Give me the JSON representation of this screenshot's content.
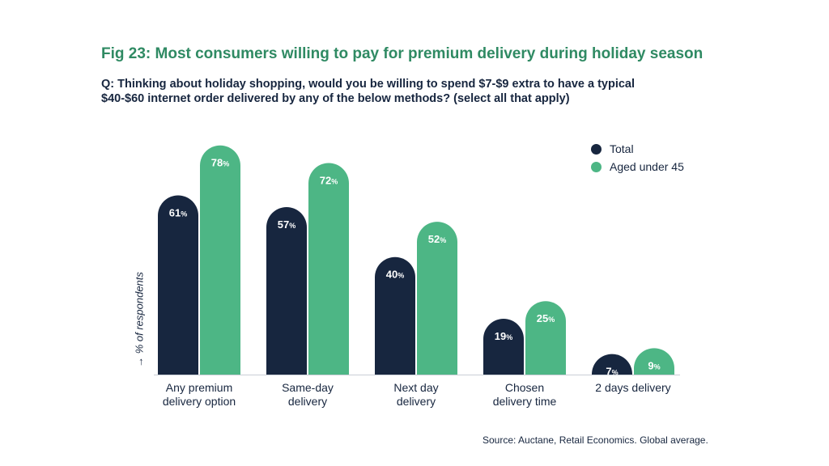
{
  "chart_data": {
    "type": "bar",
    "title": "Fig 23: Most consumers willing to pay for premium delivery during holiday season",
    "subtitle": "Q: Thinking about holiday shopping, would you be willing to spend $7-$9 extra to have a typical $40-$60 internet order delivered by any of the below methods? (select all that apply)",
    "ylabel": "→ % of respondents",
    "categories": [
      [
        "Any premium",
        "delivery option"
      ],
      [
        "Same-day",
        "delivery"
      ],
      [
        "Next day",
        "delivery"
      ],
      [
        "Chosen",
        "delivery time"
      ],
      [
        "2 days delivery"
      ]
    ],
    "series": [
      {
        "name": "Total",
        "color": "#17263f",
        "values": [
          61,
          57,
          40,
          19,
          7
        ]
      },
      {
        "name": "Aged under 45",
        "color": "#4db685",
        "values": [
          78,
          72,
          52,
          25,
          9
        ]
      }
    ],
    "value_suffix": "%",
    "ylim": [
      0,
      80
    ],
    "grid": false,
    "legend_position": "top-right",
    "source": "Source: Auctane, Retail Economics. Global average."
  },
  "colors": {
    "title": "#2f8a63",
    "text": "#17263f"
  }
}
